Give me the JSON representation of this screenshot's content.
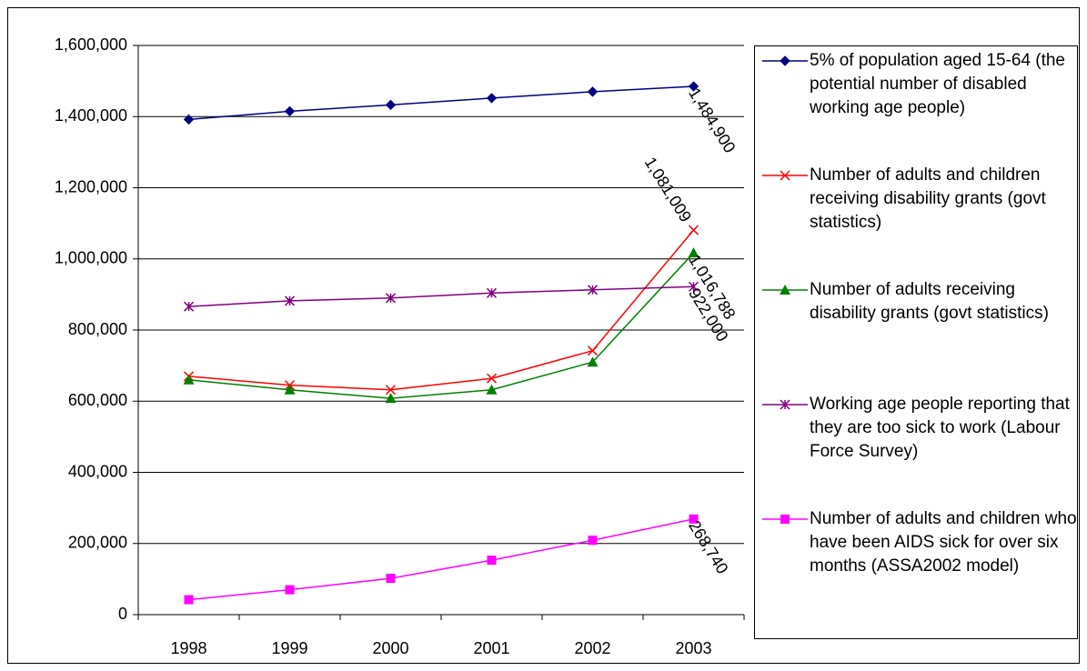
{
  "chart_data": {
    "type": "line",
    "categories": [
      "1998",
      "1999",
      "2000",
      "2001",
      "2002",
      "2003"
    ],
    "ylim": [
      0,
      1600000
    ],
    "yticks": [
      0,
      {
        "value": 200000,
        "label": "200,000"
      },
      {
        "value": 400000,
        "label": "400,000"
      },
      {
        "value": 600000,
        "label": "600,000"
      },
      {
        "value": 800000,
        "label": "800,000"
      },
      {
        "value": 1000000,
        "label": "1,000,000"
      },
      {
        "value": 1200000,
        "label": "1,200,000"
      },
      {
        "value": 1400000,
        "label": "1,400,000"
      },
      {
        "value": 1600000,
        "label": "1,600,000"
      }
    ],
    "grid": true,
    "legend": "right",
    "series": [
      {
        "name": "5% of population aged 15-64 (the potential number of disabled working age people)",
        "color": "#000080",
        "marker": "diamond",
        "values": [
          1392000,
          1415000,
          1433000,
          1452000,
          1470000,
          1484900
        ],
        "value_labels": [
          null,
          null,
          null,
          null,
          null,
          "1,484,900"
        ]
      },
      {
        "name": "Number of adults and children receiving disability grants (govt statistics)",
        "color": "#ff0000",
        "marker": "x",
        "values": [
          670000,
          645000,
          632000,
          664000,
          742000,
          1081009
        ],
        "value_labels": [
          null,
          null,
          null,
          null,
          null,
          "1,081,009"
        ]
      },
      {
        "name": "Number of adults receiving disability grants (govt statistics)",
        "color": "#008000",
        "marker": "triangle",
        "values": [
          660000,
          632000,
          608000,
          632000,
          710000,
          1016788
        ],
        "value_labels": [
          null,
          null,
          null,
          null,
          null,
          "1,016,788"
        ]
      },
      {
        "name": "Working age people reporting that they are too sick to work (Labour Force Survey)",
        "color": "#800080",
        "marker": "asterisk",
        "values": [
          866000,
          882000,
          890000,
          904000,
          913000,
          922000
        ],
        "value_labels": [
          null,
          null,
          null,
          null,
          null,
          "922,000"
        ]
      },
      {
        "name": "Number of adults and children who have been AIDS sick for over six months (ASSA2002 model)",
        "color": "#ff00ff",
        "marker": "square",
        "values": [
          42000,
          70000,
          102000,
          153000,
          209000,
          268740
        ],
        "value_labels": [
          null,
          null,
          null,
          null,
          null,
          "268,740"
        ]
      }
    ]
  }
}
